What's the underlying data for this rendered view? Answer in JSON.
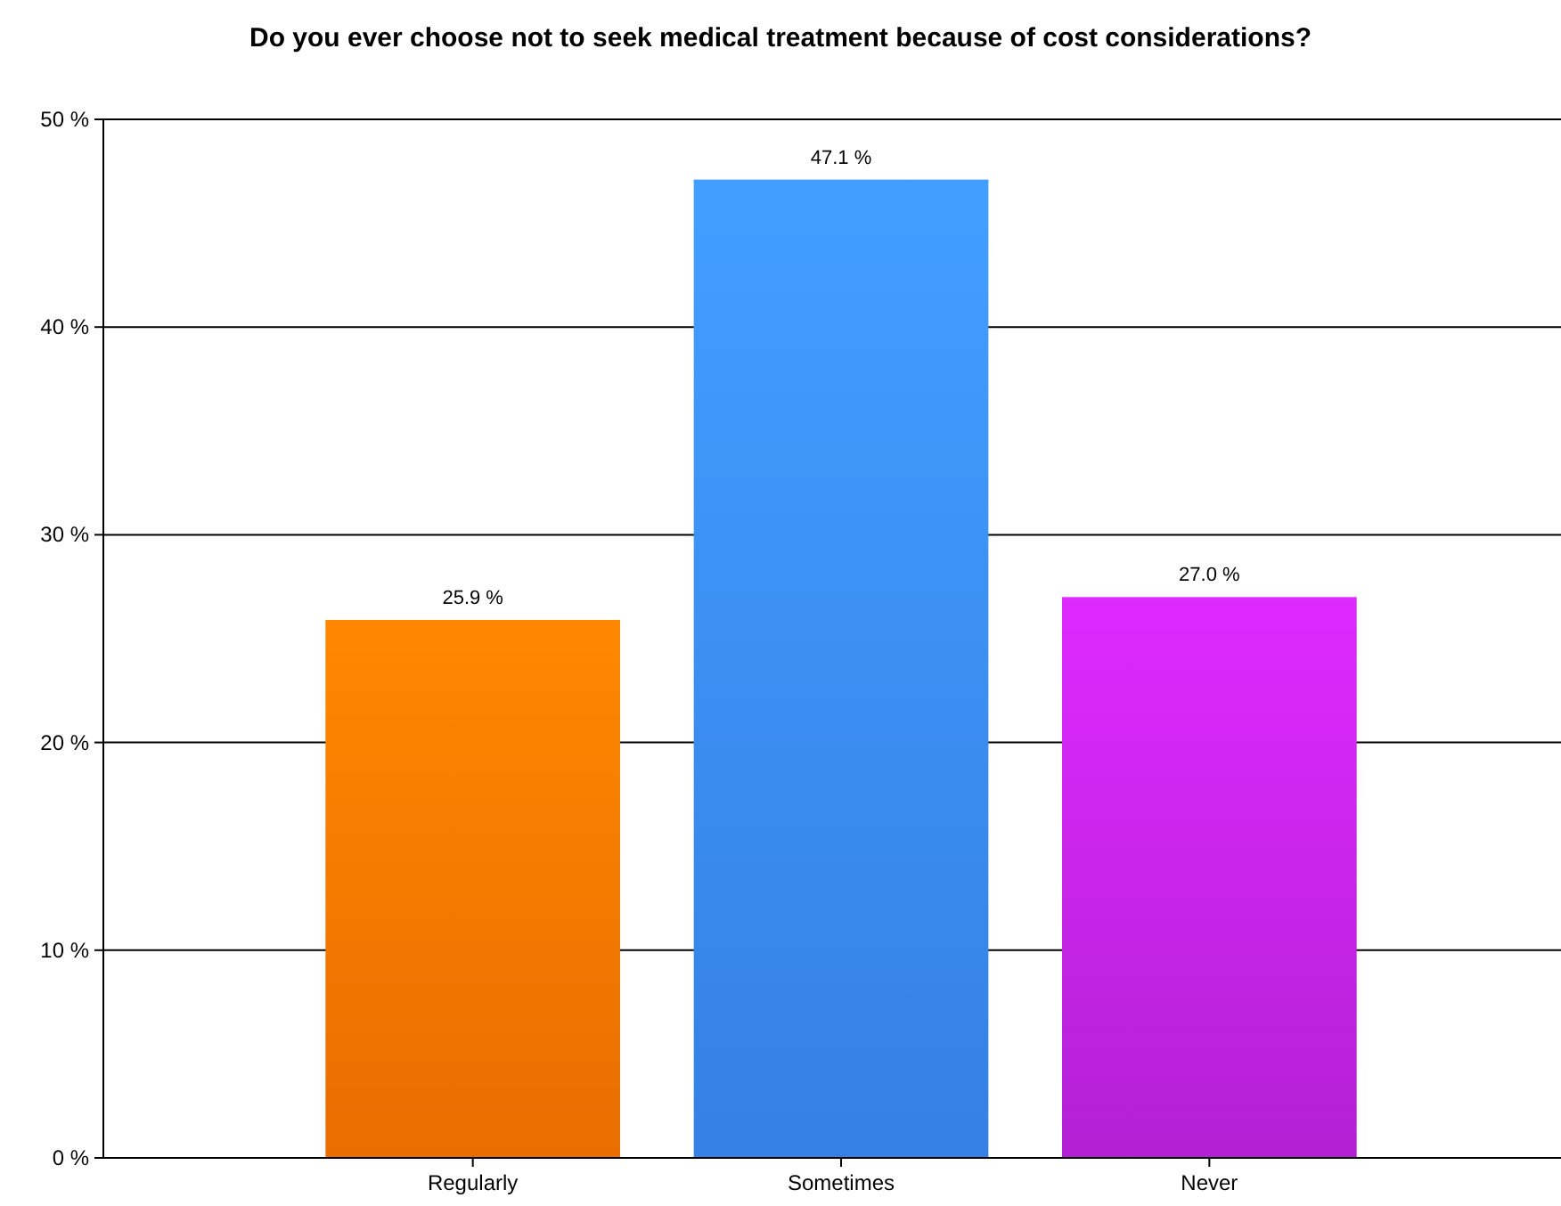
{
  "chart_data": {
    "type": "bar",
    "title": "Do you ever choose not to seek medical treatment because of cost considerations?",
    "categories": [
      "Regularly",
      "Sometimes",
      "Never"
    ],
    "values": [
      25.9,
      47.1,
      27.0
    ],
    "colors": [
      "#ff7700",
      "#3a8cfa",
      "#c424e8"
    ],
    "value_labels": [
      "25.9 %",
      "47.1 %",
      "27.0 %"
    ],
    "ylim": [
      0,
      50
    ],
    "yticks": [
      {
        "value": 0,
        "label": "0 %"
      },
      {
        "value": 10,
        "label": "10 %"
      },
      {
        "value": 20,
        "label": "20 %"
      },
      {
        "value": 30,
        "label": "30 %"
      },
      {
        "value": 40,
        "label": "40 %"
      },
      {
        "value": 50,
        "label": "50 %"
      }
    ],
    "grid": "y"
  }
}
